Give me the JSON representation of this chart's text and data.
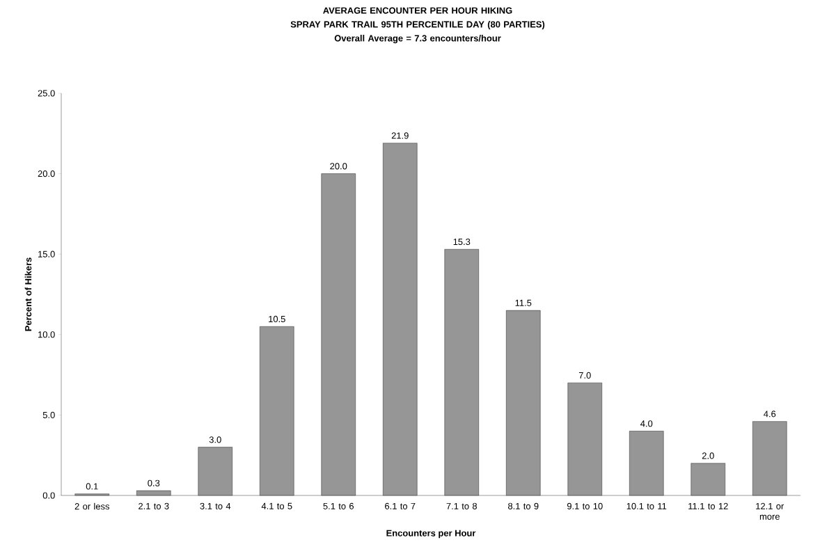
{
  "chart_data": {
    "type": "bar",
    "title": "AVERAGE ENCOUNTER PER HOUR HIKING\nSPRAY PARK TRAIL 95TH PERCENTILE DAY (80 PARTIES)\nOverall Average = 7.3 encounters/hour",
    "xlabel": "Encounters per Hour",
    "ylabel": "Percent of Hikers",
    "categories": [
      "2 or less",
      "2.1 to 3",
      "3.1 to 4",
      "4.1 to 5",
      "5.1 to 6",
      "6.1 to 7",
      "7.1 to 8",
      "8.1 to 9",
      "9.1 to 10",
      "10.1 to 11",
      "11.1 to 12",
      "12.1 or more"
    ],
    "values": [
      0.1,
      0.3,
      3.0,
      10.5,
      20.0,
      21.9,
      15.3,
      11.5,
      7.0,
      4.0,
      2.0,
      4.6
    ],
    "value_labels": [
      "0.1",
      "0.3",
      "3.0",
      "10.5",
      "20.0",
      "21.9",
      "15.3",
      "11.5",
      "7.0",
      "4.0",
      "2.0",
      "4.6"
    ],
    "color": "#969696",
    "ylim": [
      0,
      25
    ],
    "yticks": [
      {
        "value": 0,
        "label": "0.0"
      },
      {
        "value": 5,
        "label": "5.0"
      },
      {
        "value": 10,
        "label": "10.0"
      },
      {
        "value": 15,
        "label": "15.0"
      },
      {
        "value": 20,
        "label": "20.0"
      },
      {
        "value": 25,
        "label": "25.0"
      }
    ],
    "grid": false
  }
}
